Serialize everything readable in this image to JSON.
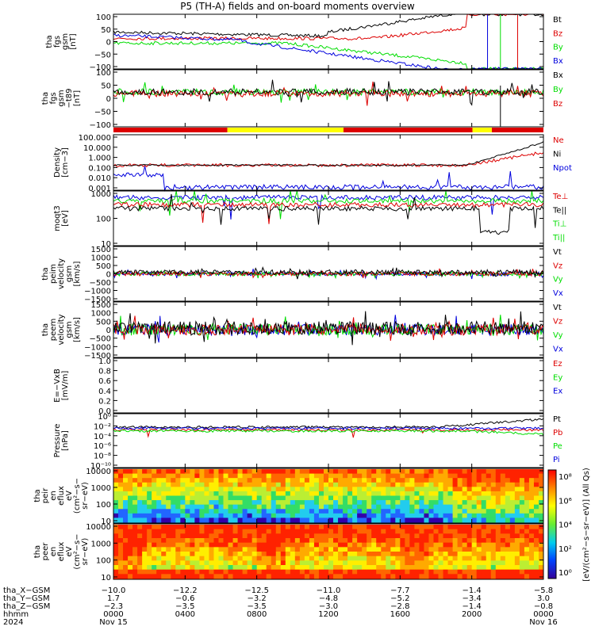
{
  "title": "P5 (TH-A) fields and on-board moments overview",
  "colors": {
    "black": "#000000",
    "red": "#dd0000",
    "green": "#00dd00",
    "blue": "#0000dd",
    "yellow": "#ffff00"
  },
  "chart_data": [
    {
      "type": "line",
      "id": "fgs_gsm",
      "ylabel_lines": [
        "tha",
        "fgs",
        "gsm",
        "[nT]"
      ],
      "ylim": [
        -100,
        100
      ],
      "yticks": [
        "100",
        "50",
        "0",
        "−50",
        "−100"
      ],
      "series": [
        {
          "name": "Bt",
          "color": "black"
        },
        {
          "name": "Bz",
          "color": "red"
        },
        {
          "name": "By",
          "color": "green"
        },
        {
          "name": "Bx",
          "color": "blue"
        }
      ]
    },
    {
      "type": "line",
      "id": "fgs_gsm_t89",
      "ylabel_lines": [
        "tha",
        "fgs",
        "gsm",
        "−t89",
        "[nT]"
      ],
      "ylim": [
        -125,
        100
      ],
      "yticks": [
        "100",
        "50",
        "0",
        "−50",
        "−100"
      ],
      "series": [
        {
          "name": "Bx",
          "color": "black"
        },
        {
          "name": "By",
          "color": "green"
        },
        {
          "name": "Bz",
          "color": "red"
        }
      ]
    },
    {
      "type": "bar",
      "id": "mode_bar",
      "segments": [
        [
          "red",
          0,
          0.265
        ],
        [
          "yellow",
          0.265,
          0.535
        ],
        [
          "red",
          0.535,
          0.835
        ],
        [
          "yellow",
          0.835,
          0.88
        ],
        [
          "red",
          0.88,
          1.0
        ]
      ]
    },
    {
      "type": "line",
      "id": "density",
      "ylabel_lines": [
        "Density",
        "[cm−3]"
      ],
      "yscale": "log",
      "yticks": [
        "100.000",
        "10.000",
        "1.000",
        "0.100",
        "0.010",
        "0.001"
      ],
      "series": [
        {
          "name": "Ne",
          "color": "red"
        },
        {
          "name": "Ni",
          "color": "black"
        },
        {
          "name": "Npot",
          "color": "blue"
        }
      ]
    },
    {
      "type": "line",
      "id": "temperature",
      "ylabel_lines": [
        "moqt3",
        "[eV]"
      ],
      "yscale": "log",
      "yticks": [
        "1000",
        "100",
        "10"
      ],
      "series": [
        {
          "name": "Te⊥",
          "color": "red"
        },
        {
          "name": "Te||",
          "color": "black"
        },
        {
          "name": "Ti⊥",
          "color": "green"
        },
        {
          "name": "Ti||",
          "color": "green"
        }
      ]
    },
    {
      "type": "line",
      "id": "peim_velocity",
      "ylabel_lines": [
        "tha",
        "peim",
        "velocity",
        "gsm",
        "[km/s]"
      ],
      "yticks": [
        "1500",
        "1000",
        "500",
        "0",
        "−500",
        "−1000",
        "−1500"
      ],
      "series": [
        {
          "name": "Vt",
          "color": "black"
        },
        {
          "name": "Vz",
          "color": "red"
        },
        {
          "name": "Vy",
          "color": "green"
        },
        {
          "name": "Vx",
          "color": "blue"
        }
      ]
    },
    {
      "type": "line",
      "id": "peem_velocity",
      "ylabel_lines": [
        "tha",
        "peem",
        "velocity",
        "gsm",
        "[km/s]"
      ],
      "yticks": [
        "1500",
        "1000",
        "500",
        "0",
        "−500",
        "−1000",
        "−1500"
      ],
      "series": [
        {
          "name": "Vt",
          "color": "black"
        },
        {
          "name": "Vz",
          "color": "red"
        },
        {
          "name": "Vy",
          "color": "green"
        },
        {
          "name": "Vx",
          "color": "blue"
        }
      ]
    },
    {
      "type": "line",
      "id": "efield",
      "ylabel_lines": [
        "E=−VxB",
        "[mV/m]"
      ],
      "ylim": [
        0,
        1
      ],
      "yticks": [
        "1.0",
        "0.8",
        "0.6",
        "0.4",
        "0.2",
        "0.0"
      ],
      "series": [
        {
          "name": "Ez",
          "color": "red"
        },
        {
          "name": "Ey",
          "color": "green"
        },
        {
          "name": "Ex",
          "color": "blue"
        }
      ]
    },
    {
      "type": "line",
      "id": "pressure",
      "ylabel_lines": [
        "Pressure",
        "[nPa]"
      ],
      "yscale": "log",
      "yticks": [
        "10⁰",
        "10⁻²",
        "10⁻⁴",
        "10⁻⁶",
        "10⁻⁸",
        "10⁻¹⁰"
      ],
      "series": [
        {
          "name": "Pt",
          "color": "black"
        },
        {
          "name": "Pb",
          "color": "red"
        },
        {
          "name": "Pe",
          "color": "green"
        },
        {
          "name": "Pi",
          "color": "blue"
        }
      ]
    },
    {
      "type": "heatmap",
      "id": "peir_spectrogram",
      "ylabel_lines": [
        "tha",
        "peir",
        "en",
        "eflux",
        "eV",
        "(cm²−s−",
        "sr−eV)"
      ],
      "yscale": "log",
      "yticks": [
        "10000",
        "1000",
        "100",
        "10"
      ]
    },
    {
      "type": "heatmap",
      "id": "peer_spectrogram",
      "ylabel_lines": [
        "tha",
        "peer",
        "en",
        "eflux",
        "eV",
        "(cm²−s−",
        "sr−eV)"
      ],
      "yscale": "log",
      "yticks": [
        "10000",
        "1000",
        "100",
        "10"
      ]
    }
  ],
  "colorbar": {
    "ticks": [
      "10⁸",
      "10⁶",
      "10⁴",
      "10²",
      "10⁰"
    ],
    "unit_label": "[eV/(cm²−s−sr−eV)] (All Qs)"
  },
  "xaxis": {
    "row_labels": [
      "tha_X−GSM",
      "tha_Y−GSM",
      "tha_Z−GSM",
      "hhmm",
      "2024"
    ],
    "columns": [
      [
        "−10.0",
        "1.7",
        "−2.3",
        "0000",
        "Nov 15"
      ],
      [
        "−12.2",
        "−0.6",
        "−3.5",
        "0400",
        ""
      ],
      [
        "−12.5",
        "−3.2",
        "−3.5",
        "0800",
        ""
      ],
      [
        "−11.0",
        "−4.8",
        "−3.0",
        "1200",
        ""
      ],
      [
        "−7.7",
        "−5.2",
        "−2.8",
        "1600",
        ""
      ],
      [
        "−1.4",
        "−3.4",
        "−1.4",
        "2000",
        ""
      ],
      [
        "−5.8",
        "3.0",
        "−0.8",
        "0000",
        "Nov 16"
      ]
    ]
  }
}
